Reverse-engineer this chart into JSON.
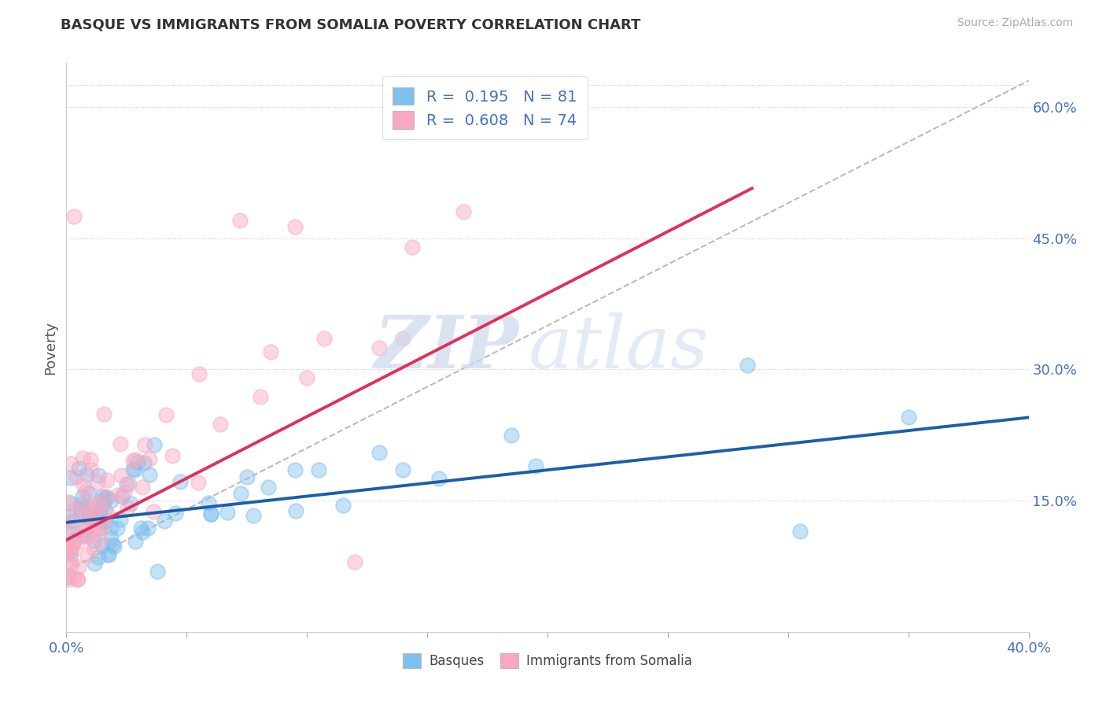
{
  "title": "BASQUE VS IMMIGRANTS FROM SOMALIA POVERTY CORRELATION CHART",
  "source": "Source: ZipAtlas.com",
  "ylabel": "Poverty",
  "xlim": [
    0.0,
    0.4
  ],
  "ylim": [
    0.0,
    0.65
  ],
  "yticks_right": [
    0.15,
    0.3,
    0.45,
    0.6
  ],
  "ytick_right_labels": [
    "15.0%",
    "30.0%",
    "45.0%",
    "60.0%"
  ],
  "R_basque": 0.195,
  "N_basque": 81,
  "R_somalia": 0.608,
  "N_somalia": 74,
  "color_basque": "#7fbfee",
  "color_somalia": "#f9a8c0",
  "line_color_basque": "#1a5fa8",
  "line_color_somalia": "#e0305a",
  "watermark_zip": "ZIP",
  "watermark_atlas": "atlas",
  "title_fontsize": 13,
  "axis_label_color": "#555555",
  "tick_label_color": "#4472c4",
  "grid_color": "#cccccc",
  "background_color": "#ffffff"
}
